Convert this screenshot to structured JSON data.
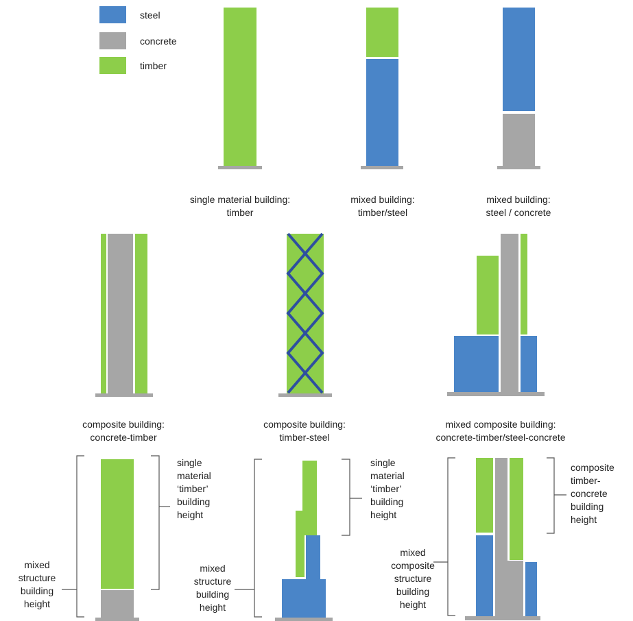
{
  "colors": {
    "steel": "#4a85c8",
    "concrete": "#a6a6a6",
    "timber": "#8dce4a",
    "bracing": "#2e4fa0",
    "bracket": "#555555",
    "base": "#a6a6a6"
  },
  "legend": [
    {
      "label": "steel",
      "color": "#4a85c8"
    },
    {
      "label": "concrete",
      "color": "#a6a6a6"
    },
    {
      "label": "timber",
      "color": "#8dce4a"
    }
  ],
  "row1": {
    "single_timber": [
      "single material building:",
      "timber"
    ],
    "mixed_timber_steel": [
      "mixed building:",
      "timber/steel"
    ],
    "mixed_steel_concrete": [
      "mixed building:",
      "steel / concrete"
    ]
  },
  "row2": {
    "composite_concrete_timber": [
      "composite building:",
      "concrete-timber"
    ],
    "composite_timber_steel": [
      "composite building:",
      "timber-steel"
    ],
    "mixed_composite": [
      "mixed composite building:",
      "concrete-timber/steel-concrete"
    ]
  },
  "row3": {
    "a_right": [
      "single",
      "material",
      "‘timber’",
      "building",
      "height"
    ],
    "a_left": [
      "mixed",
      "structure",
      "building",
      "height"
    ],
    "b_right": [
      "single",
      "material",
      "‘timber’",
      "building",
      "height"
    ],
    "b_left": [
      "mixed",
      "structure",
      "building",
      "height"
    ],
    "c_right": [
      "composite",
      "timber-",
      "concrete",
      "building",
      "height"
    ],
    "c_left": [
      "mixed",
      "composite",
      "structure",
      "building",
      "height"
    ]
  }
}
